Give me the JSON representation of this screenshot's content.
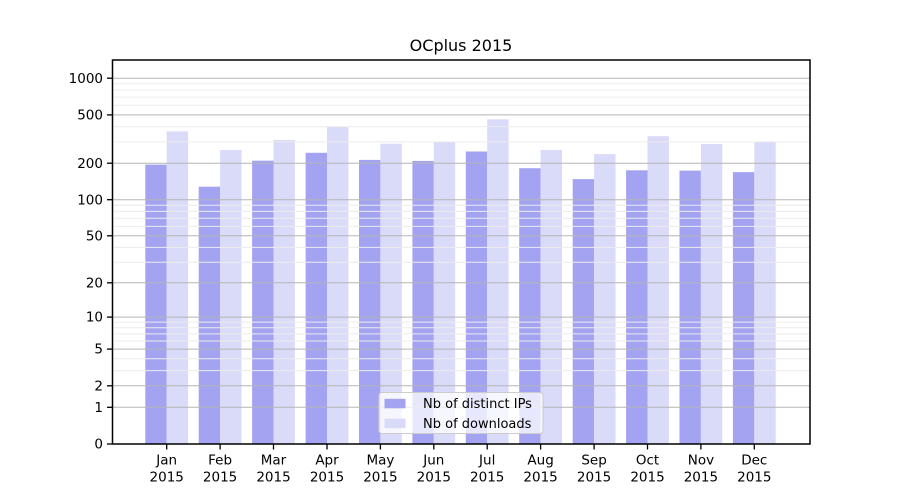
{
  "figure": {
    "background": "#ffffff",
    "axes_color": "#000000"
  },
  "chart_data": {
    "type": "bar",
    "title": "OCplus 2015",
    "categories": [
      "Jan",
      "Feb",
      "Mar",
      "Apr",
      "May",
      "Jun",
      "Jul",
      "Aug",
      "Sep",
      "Oct",
      "Nov",
      "Dec"
    ],
    "year_label": "2015",
    "series": [
      {
        "name": "Nb of distinct IPs",
        "color": "#a3a3f1",
        "values": [
          195,
          128,
          210,
          244,
          213,
          209,
          250,
          182,
          148,
          175,
          174,
          169
        ]
      },
      {
        "name": "Nb of downloads",
        "color": "#dadaf9",
        "values": [
          366,
          257,
          311,
          401,
          290,
          302,
          460,
          257,
          238,
          334,
          288,
          300
        ]
      }
    ],
    "yscale": "log1p",
    "y_ticks": [
      0,
      1,
      2,
      5,
      10,
      20,
      50,
      100,
      200,
      500,
      1000
    ],
    "y_minor_gridlines": [
      3,
      4,
      6,
      7,
      8,
      9,
      30,
      40,
      60,
      70,
      80,
      90,
      300,
      400,
      600,
      700,
      800,
      900
    ],
    "ylim": [
      0,
      1430
    ],
    "grid": true,
    "grid_major_color": "#b5b5b5",
    "grid_minor_color": "#ececec",
    "legend_position": "lower center",
    "legend_border_color": "#cccccc"
  }
}
